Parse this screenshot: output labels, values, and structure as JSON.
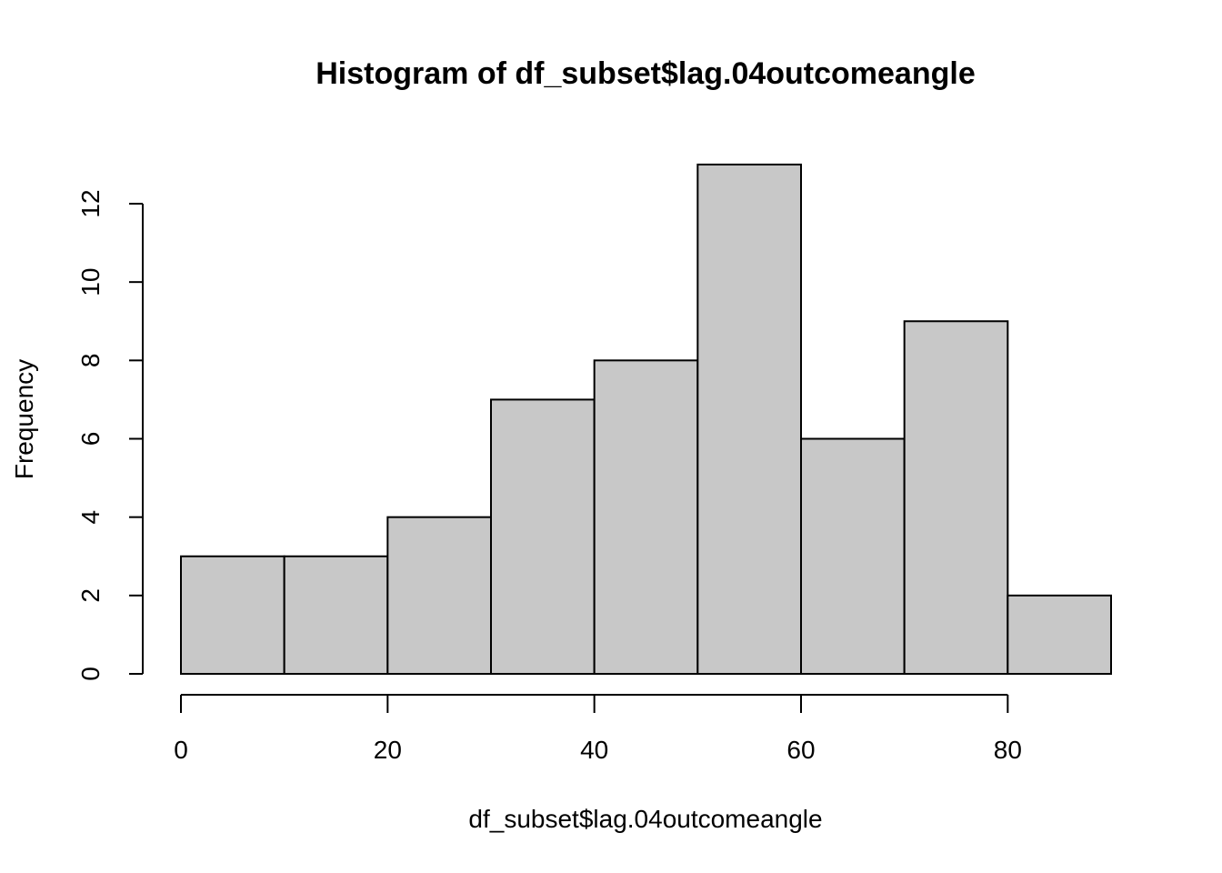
{
  "chart_data": {
    "type": "bar",
    "title": "Histogram of df_subset$lag.04outcomeangle",
    "xlabel": "df_subset$lag.04outcomeangle",
    "ylabel": "Frequency",
    "bins": [
      {
        "start": 0,
        "end": 10,
        "count": 3
      },
      {
        "start": 10,
        "end": 20,
        "count": 3
      },
      {
        "start": 20,
        "end": 30,
        "count": 4
      },
      {
        "start": 30,
        "end": 40,
        "count": 7
      },
      {
        "start": 40,
        "end": 50,
        "count": 8
      },
      {
        "start": 50,
        "end": 60,
        "count": 13
      },
      {
        "start": 60,
        "end": 70,
        "count": 6
      },
      {
        "start": 70,
        "end": 80,
        "count": 9
      },
      {
        "start": 80,
        "end": 90,
        "count": 2
      }
    ],
    "xlim": [
      0,
      90
    ],
    "ylim": [
      0,
      13
    ],
    "x_ticks": [
      "0",
      "20",
      "40",
      "60",
      "80"
    ],
    "y_ticks": [
      "0",
      "2",
      "4",
      "6",
      "8",
      "10",
      "12"
    ],
    "bar_fill": "#c8c8c8",
    "bar_stroke": "#000000",
    "grid": false
  }
}
